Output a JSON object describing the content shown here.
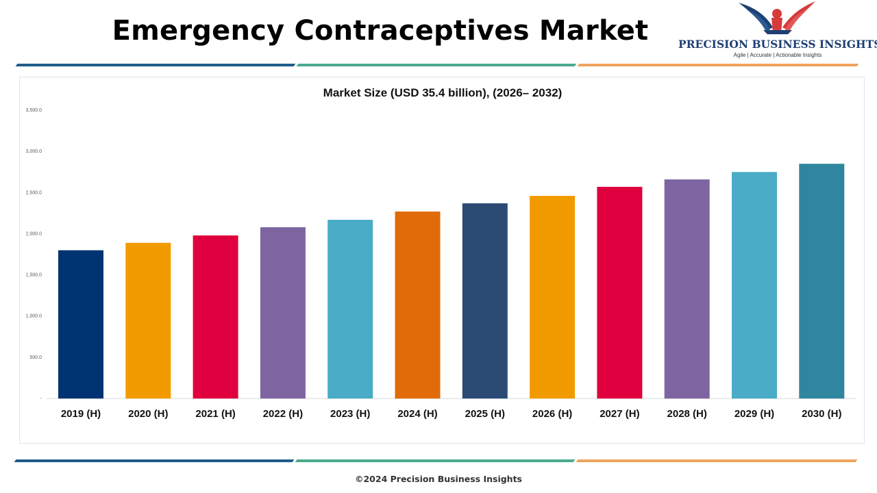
{
  "header": {
    "title": "Emergency Contraceptives Market"
  },
  "logo": {
    "name": "PRECISION BUSINESS INSIGHTS",
    "tagline": "Agile | Accurate | Actionable Insights",
    "colors": {
      "navy": "#1f3f73",
      "red": "#d63b3b"
    }
  },
  "rules": {
    "colors": [
      "#1e5c8a",
      "#4aaa8f",
      "#f0a35e"
    ]
  },
  "chart_data": {
    "type": "bar",
    "title": "Market Size (USD 35.4  billion), (2026– 2032)",
    "xlabel": "",
    "ylabel": "",
    "categories": [
      "2019 (H)",
      "2020 (H)",
      "2021 (H)",
      "2022 (H)",
      "2023 (H)",
      "2024 (H)",
      "2025 (H)",
      "2026 (H)",
      "2027 (H)",
      "2028 (H)",
      "2029 (H)",
      "2030 (H)"
    ],
    "values": [
      1800,
      1890,
      1980,
      2080,
      2170,
      2270,
      2370,
      2460,
      2570,
      2660,
      2750,
      2850
    ],
    "colors": [
      "#003371",
      "#f29b00",
      "#e0003f",
      "#7e65a1",
      "#4aacc6",
      "#e06b08",
      "#2b4b75",
      "#f29b00",
      "#e0003f",
      "#7e65a1",
      "#4aacc6",
      "#2f869e"
    ],
    "ylim": [
      0,
      3500
    ],
    "yticks": [
      "-",
      "500.0",
      "1,000.0",
      "1,500.0",
      "2,000.0",
      "2,500.0",
      "3,000.0",
      "3,500.0"
    ],
    "grid": false,
    "legend": "none"
  },
  "footer": {
    "text": "©2024 Precision Business Insights"
  }
}
